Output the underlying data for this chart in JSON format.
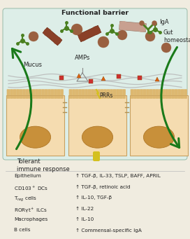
{
  "title_top": "Functional barrier",
  "label_mucus": "Mucus",
  "label_amps": "AMPs",
  "label_prrs": "PRRs",
  "label_iga": "IgA",
  "label_gut": "Gut\nhomeostasis",
  "title_bottom_left": "Tolerant\nimmune response",
  "bg_color": "#f0ece0",
  "lumen_bg": "#ddeee8",
  "cell_fill": "#f5dcb0",
  "cell_border": "#c8a060",
  "nucleus_fill": "#c8903a",
  "nucleus_border": "#b07828",
  "villi_color": "#ddb870",
  "mucus_color": "#b8b8b8",
  "arrow_green": "#1a7a1a",
  "bacteria_dark": "#7a3520",
  "bacteria_green_color": "#4a8020",
  "dot_brown": "#9a6040",
  "red_square": "#cc3030",
  "orange_tri": "#dd6010",
  "yellow_drop": "#d4c020",
  "tight_junc": "#b09050",
  "legend_left": [
    "Epithelium",
    "CD103⁺ DCs",
    "Tₑₐᴳ cells",
    "RORγt⁺ ILCs",
    "Macrophages",
    "B cells"
  ],
  "legend_right": [
    "↑ TGF-β, IL-33, TSLP, BAFF, APRIL",
    "↑ TGF-β, retinoic acid",
    "↑ IL-10, TGF-β",
    "↑ IL-22",
    "↑ IL-10",
    "↑ Commensal-specific IgA"
  ]
}
